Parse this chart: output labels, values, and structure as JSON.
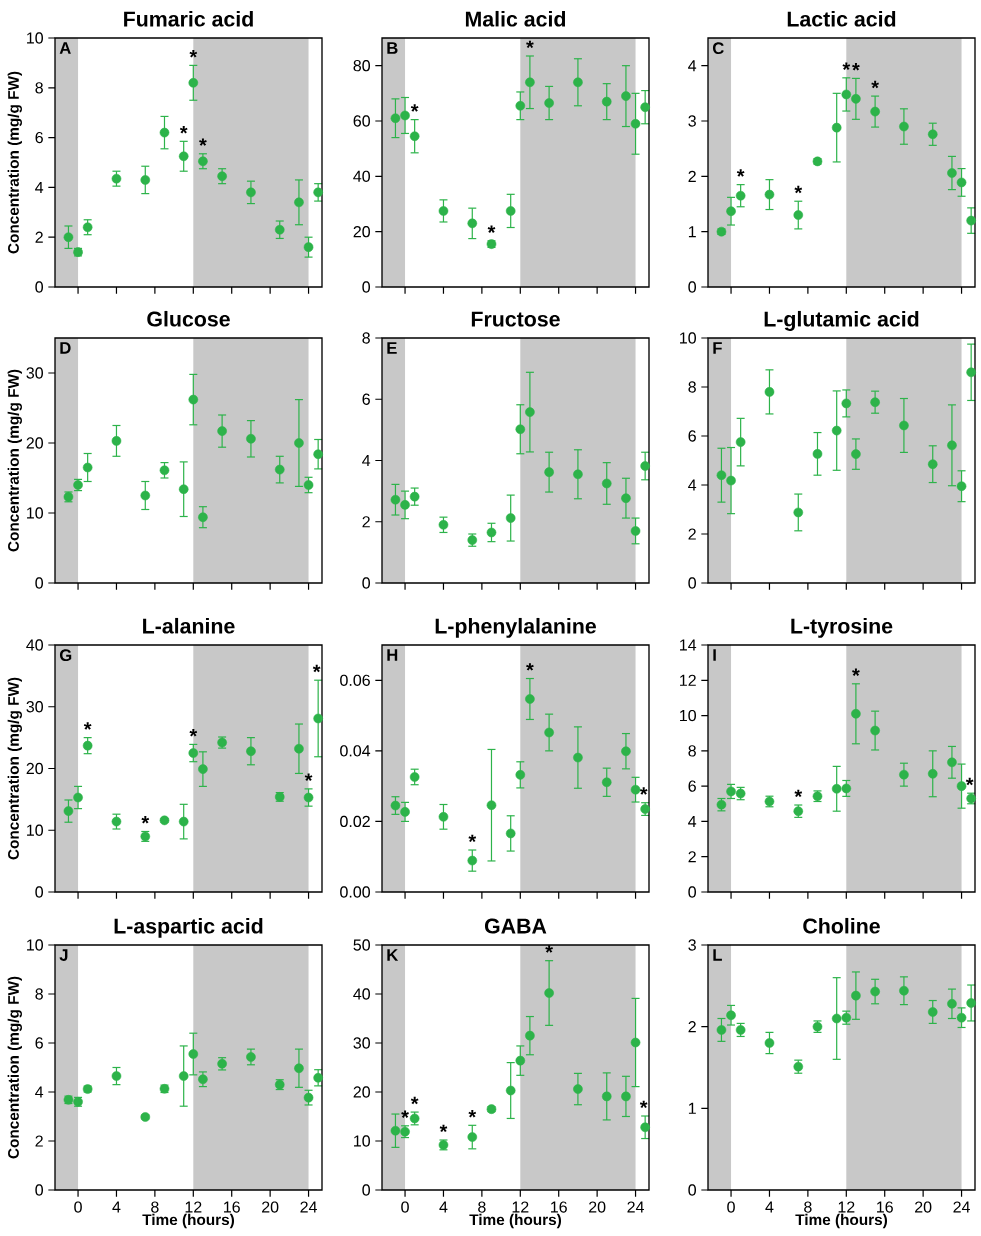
{
  "chart_data": [
    {
      "type": "scatter",
      "title": "Fumaric acid",
      "ylabel": "Concentration (mg/g FW)",
      "marker": "circle",
      "color": "#2db34a",
      "tick_labels": "y",
      "x": [
        -1,
        0,
        1,
        4,
        7,
        9,
        11,
        12,
        13,
        15,
        18,
        21,
        23,
        24,
        25
      ],
      "values": [
        2.0,
        1.4,
        2.4,
        4.35,
        4.3,
        6.2,
        5.25,
        8.2,
        5.05,
        4.45,
        3.8,
        2.3,
        3.4,
        1.6,
        3.8
      ],
      "errors": [
        0.45,
        0.15,
        0.3,
        0.3,
        0.55,
        0.65,
        0.6,
        0.7,
        0.3,
        0.3,
        0.45,
        0.35,
        0.9,
        0.4,
        0.35
      ],
      "xlim": [
        -2.4,
        25.4
      ],
      "xticks": [
        0,
        4,
        8,
        12,
        16,
        20,
        24
      ],
      "ylim": [
        0,
        10
      ],
      "yticks": [
        0,
        2,
        4,
        6,
        8,
        10
      ],
      "bands": [
        {
          "axis": "x",
          "from": -2.4,
          "to": 0,
          "color": "#c8c8c8"
        },
        {
          "axis": "x",
          "from": 12,
          "to": 24,
          "color": "#c8c8c8"
        }
      ],
      "annotations": [
        "A",
        {
          "text": "*",
          "x": 11,
          "y": 5.85
        },
        {
          "text": "*",
          "x": 12,
          "y": 8.9
        },
        {
          "text": "*",
          "x": 13,
          "y": 5.35
        }
      ]
    },
    {
      "type": "scatter",
      "title": "Malic acid",
      "marker": "circle",
      "color": "#2db34a",
      "tick_labels": "y",
      "x": [
        -1,
        0,
        1,
        4,
        7,
        9,
        11,
        12,
        13,
        15,
        18,
        21,
        23,
        24,
        25
      ],
      "values": [
        61,
        62,
        54.5,
        27.5,
        23,
        15.5,
        27.5,
        65.5,
        74,
        66.5,
        74,
        67,
        69,
        59,
        65
      ],
      "errors": [
        7,
        6.5,
        6,
        4,
        5.5,
        1.2,
        6,
        5,
        9.5,
        6,
        8.5,
        6.5,
        11,
        11,
        6
      ],
      "xlim": [
        -2.4,
        25.4
      ],
      "xticks": [
        0,
        4,
        8,
        12,
        16,
        20,
        24
      ],
      "ylim": [
        0,
        90
      ],
      "yticks": [
        0,
        20,
        40,
        60,
        80
      ],
      "bands": [
        {
          "axis": "x",
          "from": -2.4,
          "to": 0,
          "color": "#c8c8c8"
        },
        {
          "axis": "x",
          "from": 12,
          "to": 24,
          "color": "#c8c8c8"
        }
      ],
      "annotations": [
        "B",
        {
          "text": "*",
          "x": 1,
          "y": 60.5
        },
        {
          "text": "*",
          "x": 9,
          "y": 16.7
        },
        {
          "text": "*",
          "x": 13,
          "y": 83.5
        }
      ]
    },
    {
      "type": "scatter",
      "title": "Lactic acid",
      "marker": "circle",
      "color": "#2db34a",
      "tick_labels": "y",
      "x": [
        -1,
        0,
        1,
        4,
        7,
        9,
        11,
        12,
        13,
        15,
        18,
        21,
        23,
        24,
        25
      ],
      "values": [
        1.0,
        1.37,
        1.65,
        1.67,
        1.3,
        2.27,
        2.88,
        3.48,
        3.4,
        3.17,
        2.9,
        2.76,
        2.06,
        1.89,
        1.2
      ],
      "errors": [
        0.05,
        0.25,
        0.2,
        0.27,
        0.25,
        0.05,
        0.62,
        0.3,
        0.37,
        0.28,
        0.32,
        0.2,
        0.3,
        0.25,
        0.23
      ],
      "xlim": [
        -2.4,
        25.4
      ],
      "xticks": [
        0,
        4,
        8,
        12,
        16,
        20,
        24
      ],
      "ylim": [
        0,
        4.5
      ],
      "yticks": [
        0,
        1,
        2,
        3,
        4
      ],
      "bands": [
        {
          "axis": "x",
          "from": -2.4,
          "to": 0,
          "color": "#c8c8c8"
        },
        {
          "axis": "x",
          "from": 12,
          "to": 24,
          "color": "#c8c8c8"
        }
      ],
      "annotations": [
        "C",
        {
          "text": "*",
          "x": 1,
          "y": 1.85
        },
        {
          "text": "*",
          "x": 7,
          "y": 1.55
        },
        {
          "text": "*",
          "x": 12,
          "y": 3.78
        },
        {
          "text": "*",
          "x": 13,
          "y": 3.77
        },
        {
          "text": "*",
          "x": 15,
          "y": 3.45
        }
      ]
    },
    {
      "type": "scatter",
      "title": "Glucose",
      "ylabel": "Concentration (mg/g FW)",
      "marker": "circle",
      "color": "#2db34a",
      "tick_labels": "y",
      "x": [
        -1,
        0,
        1,
        4,
        7,
        9,
        11,
        12,
        13,
        15,
        18,
        21,
        23,
        24,
        25
      ],
      "values": [
        12.3,
        14.0,
        16.5,
        20.3,
        12.5,
        16.1,
        13.4,
        26.2,
        9.4,
        21.7,
        20.6,
        16.2,
        20.0,
        14.0,
        18.4
      ],
      "errors": [
        0.7,
        0.8,
        2,
        2.2,
        2,
        1.1,
        3.9,
        3.6,
        1.5,
        2.3,
        2.6,
        1.9,
        6.2,
        1.1,
        2.1
      ],
      "xlim": [
        -2.4,
        25.4
      ],
      "xticks": [
        0,
        4,
        8,
        12,
        16,
        20,
        24
      ],
      "ylim": [
        0,
        35
      ],
      "yticks": [
        0,
        10,
        20,
        30
      ],
      "bands": [
        {
          "axis": "x",
          "from": -2.4,
          "to": 0,
          "color": "#c8c8c8"
        },
        {
          "axis": "x",
          "from": 12,
          "to": 24,
          "color": "#c8c8c8"
        }
      ],
      "annotations": [
        "D"
      ]
    },
    {
      "type": "scatter",
      "title": "Fructose",
      "marker": "circle",
      "color": "#2db34a",
      "tick_labels": "y",
      "x": [
        -1,
        0,
        1,
        4,
        7,
        9,
        11,
        12,
        13,
        15,
        18,
        21,
        23,
        24,
        25
      ],
      "values": [
        2.72,
        2.55,
        2.82,
        1.9,
        1.4,
        1.65,
        2.12,
        5.02,
        5.58,
        3.62,
        3.55,
        3.25,
        2.77,
        1.7,
        3.82
      ],
      "errors": [
        0.5,
        0.45,
        0.28,
        0.25,
        0.2,
        0.3,
        0.75,
        0.8,
        1.3,
        0.65,
        0.8,
        0.68,
        0.65,
        0.42,
        0.45
      ],
      "xlim": [
        -2.4,
        25.4
      ],
      "xticks": [
        0,
        4,
        8,
        12,
        16,
        20,
        24
      ],
      "ylim": [
        0,
        8
      ],
      "yticks": [
        0,
        2,
        4,
        6,
        8
      ],
      "bands": [
        {
          "axis": "x",
          "from": -2.4,
          "to": 0,
          "color": "#c8c8c8"
        },
        {
          "axis": "x",
          "from": 12,
          "to": 24,
          "color": "#c8c8c8"
        }
      ],
      "annotations": [
        "E"
      ]
    },
    {
      "type": "scatter",
      "title": "L-glutamic acid",
      "marker": "circle",
      "color": "#2db34a",
      "tick_labels": "y",
      "x": [
        -1,
        0,
        1,
        4,
        7,
        9,
        11,
        12,
        13,
        15,
        18,
        21,
        23,
        24,
        25
      ],
      "values": [
        4.4,
        4.18,
        5.75,
        7.8,
        2.88,
        5.27,
        6.22,
        7.33,
        5.26,
        7.38,
        6.43,
        4.85,
        5.62,
        3.95,
        8.6
      ],
      "errors": [
        1.1,
        1.35,
        0.97,
        0.9,
        0.75,
        0.87,
        1.62,
        0.55,
        0.62,
        0.45,
        1.1,
        0.75,
        1.65,
        0.63,
        1.15
      ],
      "xlim": [
        -2.4,
        25.4
      ],
      "xticks": [
        0,
        4,
        8,
        12,
        16,
        20,
        24
      ],
      "ylim": [
        0,
        10
      ],
      "yticks": [
        0,
        2,
        4,
        6,
        8,
        10
      ],
      "bands": [
        {
          "axis": "x",
          "from": -2.4,
          "to": 0,
          "color": "#c8c8c8"
        },
        {
          "axis": "x",
          "from": 12,
          "to": 24,
          "color": "#c8c8c8"
        }
      ],
      "annotations": [
        "F"
      ]
    },
    {
      "type": "scatter",
      "title": "L-alanine",
      "ylabel": "Concentration (mg/g FW)",
      "marker": "circle",
      "color": "#2db34a",
      "tick_labels": "y",
      "x": [
        -1,
        0,
        1,
        4,
        7,
        9,
        11,
        12,
        13,
        15,
        18,
        21,
        23,
        24,
        25
      ],
      "values": [
        13.1,
        15.3,
        23.7,
        11.4,
        9.0,
        11.6,
        11.4,
        22.5,
        19.9,
        24.2,
        22.8,
        15.4,
        23.2,
        15.3,
        28.1
      ],
      "errors": [
        1.8,
        1.8,
        1.3,
        1.2,
        0.8,
        0.3,
        2.8,
        1.4,
        2.8,
        0.9,
        2.2,
        0.7,
        4,
        1.4,
        6.2
      ],
      "xlim": [
        -2.4,
        25.4
      ],
      "xticks": [
        0,
        4,
        8,
        12,
        16,
        20,
        24
      ],
      "ylim": [
        0,
        40
      ],
      "yticks": [
        0,
        10,
        20,
        30,
        40
      ],
      "bands": [
        {
          "axis": "x",
          "from": -2.4,
          "to": 0,
          "color": "#c8c8c8"
        },
        {
          "axis": "x",
          "from": 12,
          "to": 24,
          "color": "#c8c8c8"
        }
      ],
      "annotations": [
        "G",
        {
          "text": "*",
          "x": 1,
          "y": 25
        },
        {
          "text": "*",
          "x": 7,
          "y": 9.8
        },
        {
          "text": "*",
          "x": 12,
          "y": 23.9
        },
        {
          "text": "*",
          "x": 24,
          "y": 16.7
        },
        {
          "text": "*",
          "x": 25,
          "y": 34.3
        }
      ]
    },
    {
      "type": "scatter",
      "title": "L-phenylalanine",
      "marker": "circle",
      "color": "#2db34a",
      "tick_labels": "y",
      "x": [
        -1,
        0,
        1,
        4,
        7,
        9,
        11,
        12,
        13,
        15,
        18,
        21,
        23,
        24,
        25
      ],
      "values": [
        0.0245,
        0.0227,
        0.0326,
        0.0213,
        0.0089,
        0.0246,
        0.0166,
        0.0332,
        0.0547,
        0.0452,
        0.0381,
        0.0311,
        0.0399,
        0.029,
        0.0235
      ],
      "errors": [
        0.0025,
        0.0027,
        0.0022,
        0.0035,
        0.003,
        0.0158,
        0.005,
        0.0037,
        0.0058,
        0.0052,
        0.0087,
        0.004,
        0.005,
        0.0035,
        0.0018
      ],
      "xlim": [
        -2.4,
        25.4
      ],
      "xticks": [
        0,
        4,
        8,
        12,
        16,
        20,
        24
      ],
      "ylim": [
        0,
        0.07
      ],
      "yticks": [
        {
          "value": 0,
          "label": "0.00"
        },
        {
          "value": 0.02,
          "label": "0.02"
        },
        {
          "value": 0.04,
          "label": "0.04"
        },
        {
          "value": 0.06,
          "label": "0.06"
        }
      ],
      "bands": [
        {
          "axis": "x",
          "from": -2.4,
          "to": 0,
          "color": "#c8c8c8"
        },
        {
          "axis": "x",
          "from": 12,
          "to": 24,
          "color": "#c8c8c8"
        }
      ],
      "annotations": [
        "H",
        {
          "text": "*",
          "x": 7,
          "y": 0.0119
        },
        {
          "text": "*",
          "x": 13,
          "y": 0.0605
        },
        {
          "text": "*",
          "x": 25,
          "y": 0.0253
        }
      ]
    },
    {
      "type": "scatter",
      "title": "L-tyrosine",
      "marker": "circle",
      "color": "#2db34a",
      "tick_labels": "y",
      "x": [
        -1,
        0,
        1,
        4,
        7,
        9,
        11,
        12,
        13,
        15,
        18,
        21,
        23,
        24,
        25
      ],
      "values": [
        4.95,
        5.7,
        5.58,
        5.13,
        4.58,
        5.43,
        5.85,
        5.87,
        10.1,
        9.15,
        6.65,
        6.7,
        7.35,
        6.0,
        5.3
      ],
      "errors": [
        0.35,
        0.4,
        0.35,
        0.3,
        0.35,
        0.3,
        1.27,
        0.45,
        1.7,
        1.1,
        0.65,
        1.3,
        0.9,
        1.25,
        0.3
      ],
      "xlim": [
        -2.4,
        25.4
      ],
      "xticks": [
        0,
        4,
        8,
        12,
        16,
        20,
        24
      ],
      "ylim": [
        0,
        14
      ],
      "yticks": [
        0,
        2,
        4,
        6,
        8,
        10,
        12,
        14
      ],
      "bands": [
        {
          "axis": "x",
          "from": -2.4,
          "to": 0,
          "color": "#c8c8c8"
        },
        {
          "axis": "x",
          "from": 12,
          "to": 24,
          "color": "#c8c8c8"
        }
      ],
      "annotations": [
        "I",
        {
          "text": "*",
          "x": 7,
          "y": 4.93
        },
        {
          "text": "*",
          "x": 13,
          "y": 11.8
        },
        {
          "text": "*",
          "x": 25,
          "y": 5.6
        }
      ]
    },
    {
      "type": "scatter",
      "title": "L-aspartic acid",
      "ylabel": "Concentration (mg/g FW)",
      "xlabel": "Time (hours)",
      "marker": "circle",
      "color": "#2db34a",
      "x": [
        -1,
        0,
        1,
        4,
        7,
        9,
        11,
        12,
        13,
        15,
        18,
        21,
        23,
        24,
        25
      ],
      "values": [
        3.68,
        3.6,
        4.12,
        4.65,
        2.98,
        4.13,
        4.65,
        5.55,
        4.52,
        5.15,
        5.43,
        4.3,
        4.97,
        3.77,
        4.58
      ],
      "errors": [
        0.15,
        0.18,
        0.12,
        0.35,
        0.08,
        0.15,
        1.23,
        0.85,
        0.3,
        0.25,
        0.32,
        0.2,
        0.78,
        0.3,
        0.33
      ],
      "xlim": [
        -2.4,
        25.4
      ],
      "xticks": [
        0,
        4,
        8,
        12,
        16,
        20,
        24
      ],
      "ylim": [
        0,
        10
      ],
      "yticks": [
        0,
        2,
        4,
        6,
        8,
        10
      ],
      "bands": [
        {
          "axis": "x",
          "from": -2.4,
          "to": 0,
          "color": "#c8c8c8"
        },
        {
          "axis": "x",
          "from": 12,
          "to": 24,
          "color": "#c8c8c8"
        }
      ],
      "annotations": [
        "J"
      ]
    },
    {
      "type": "scatter",
      "title": "GABA",
      "xlabel": "Time (hours)",
      "marker": "circle",
      "color": "#2db34a",
      "x": [
        -1,
        0,
        1,
        4,
        7,
        9,
        11,
        12,
        13,
        15,
        18,
        21,
        23,
        24,
        25
      ],
      "values": [
        12.1,
        11.9,
        14.6,
        9.2,
        10.8,
        16.5,
        20.3,
        26.4,
        31.5,
        40.2,
        20.6,
        19.1,
        19.1,
        30.1,
        12.8
      ],
      "errors": [
        3.4,
        1.2,
        1.3,
        1.0,
        2.4,
        0.5,
        5.7,
        3,
        3.9,
        6.6,
        3.2,
        4.8,
        4.1,
        9,
        2.3
      ],
      "xlim": [
        -2.4,
        25.4
      ],
      "xticks": [
        0,
        4,
        8,
        12,
        16,
        20,
        24
      ],
      "ylim": [
        0,
        50
      ],
      "yticks": [
        0,
        10,
        20,
        30,
        40,
        50
      ],
      "bands": [
        {
          "axis": "x",
          "from": -2.4,
          "to": 0,
          "color": "#c8c8c8"
        },
        {
          "axis": "x",
          "from": 12,
          "to": 24,
          "color": "#c8c8c8"
        }
      ],
      "annotations": [
        "K",
        {
          "text": "*",
          "x": 0,
          "y": 13.1
        },
        {
          "text": "*",
          "x": 1,
          "y": 15.9
        },
        {
          "text": "*",
          "x": 4,
          "y": 10.2
        },
        {
          "text": "*",
          "x": 7,
          "y": 13.2
        },
        {
          "text": "*",
          "x": 15,
          "y": 46.8
        },
        {
          "text": "*",
          "x": 25,
          "y": 15.1
        }
      ]
    },
    {
      "type": "scatter",
      "title": "Choline",
      "xlabel": "Time (hours)",
      "marker": "circle",
      "color": "#2db34a",
      "x": [
        -1,
        0,
        1,
        4,
        7,
        9,
        11,
        12,
        13,
        15,
        18,
        21,
        23,
        24,
        25
      ],
      "values": [
        1.96,
        2.14,
        1.96,
        1.8,
        1.51,
        2.0,
        2.1,
        2.11,
        2.38,
        2.43,
        2.44,
        2.18,
        2.28,
        2.11,
        2.29
      ],
      "errors": [
        0.14,
        0.12,
        0.08,
        0.13,
        0.08,
        0.07,
        0.5,
        0.08,
        0.29,
        0.15,
        0.17,
        0.14,
        0.18,
        0.12,
        0.22
      ],
      "xlim": [
        -2.4,
        25.4
      ],
      "xticks": [
        0,
        4,
        8,
        12,
        16,
        20,
        24
      ],
      "ylim": [
        0,
        3
      ],
      "yticks": [
        0,
        1,
        2,
        3
      ],
      "bands": [
        {
          "axis": "x",
          "from": -2.4,
          "to": 0,
          "color": "#c8c8c8"
        },
        {
          "axis": "x",
          "from": 12,
          "to": 24,
          "color": "#c8c8c8"
        }
      ],
      "annotations": [
        "L"
      ]
    }
  ]
}
